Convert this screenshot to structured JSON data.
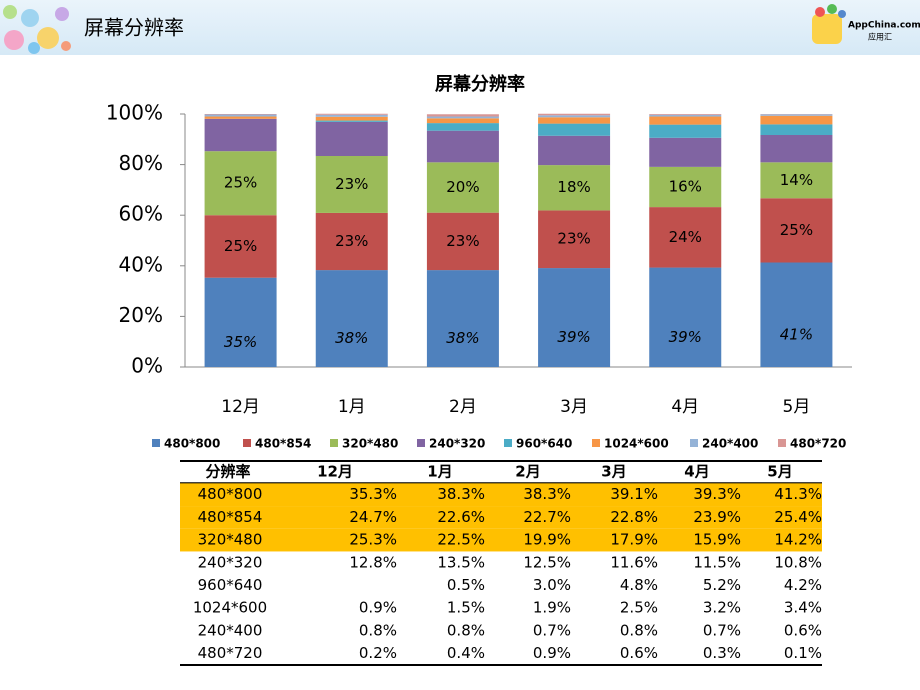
{
  "header": {
    "title": "屏幕分辨率",
    "logo": "AppChina.com",
    "logo_sub": "应用汇"
  },
  "chart_data": {
    "type": "stacked_bar",
    "title": "屏幕分辨率",
    "categories": [
      "12月",
      "1月",
      "2月",
      "3月",
      "4月",
      "5月"
    ],
    "ylim": [
      0,
      100
    ],
    "yticks": [
      {
        "value": 0,
        "label": "0%"
      },
      {
        "value": 20,
        "label": "20%"
      },
      {
        "value": 40,
        "label": "40%"
      },
      {
        "value": 60,
        "label": "60%"
      },
      {
        "value": 80,
        "label": "80%"
      },
      {
        "value": 100,
        "label": "100%"
      }
    ],
    "legend": "bottom",
    "series": [
      {
        "name": "480*800",
        "color": "#4f81bd",
        "values": [
          35.3,
          38.3,
          38.3,
          39.1,
          39.3,
          41.3
        ],
        "value_labels": [
          "35%",
          "38%",
          "38%",
          "39%",
          "39%",
          "41%"
        ]
      },
      {
        "name": "480*854",
        "color": "#c0504d",
        "values": [
          24.7,
          22.6,
          22.7,
          22.8,
          23.9,
          25.4
        ],
        "value_labels": [
          "25%",
          "23%",
          "23%",
          "23%",
          "24%",
          "25%"
        ]
      },
      {
        "name": "320*480",
        "color": "#9bbb59",
        "values": [
          25.3,
          22.5,
          19.9,
          17.9,
          15.9,
          14.2
        ],
        "value_labels": [
          "25%",
          "23%",
          "20%",
          "18%",
          "16%",
          "14%"
        ]
      },
      {
        "name": "240*320",
        "color": "#8064a2",
        "values": [
          12.8,
          13.5,
          12.5,
          11.6,
          11.5,
          10.8
        ]
      },
      {
        "name": "960*640",
        "color": "#4bacc6",
        "values": [
          null,
          0.5,
          3.0,
          4.8,
          5.2,
          4.2
        ]
      },
      {
        "name": "1024*600",
        "color": "#f79646",
        "values": [
          0.9,
          1.5,
          1.9,
          2.5,
          3.2,
          3.4
        ]
      },
      {
        "name": "240*400",
        "color": "#95b3d7",
        "values": [
          0.8,
          0.8,
          0.7,
          0.8,
          0.7,
          0.6
        ]
      },
      {
        "name": "480*720",
        "color": "#d99694",
        "values": [
          0.2,
          0.4,
          0.9,
          0.6,
          0.3,
          0.1
        ]
      }
    ]
  },
  "table": {
    "header": [
      "分辨率",
      "12月",
      "1月",
      "2月",
      "3月",
      "4月",
      "5月"
    ],
    "highlight_color": "#ffc000",
    "rows": [
      [
        "480*800",
        "35.3%",
        "38.3%",
        "38.3%",
        "39.1%",
        "39.3%",
        "41.3%"
      ],
      [
        "480*854",
        "24.7%",
        "22.6%",
        "22.7%",
        "22.8%",
        "23.9%",
        "25.4%"
      ],
      [
        "320*480",
        "25.3%",
        "22.5%",
        "19.9%",
        "17.9%",
        "15.9%",
        "14.2%"
      ],
      [
        "240*320",
        "12.8%",
        "13.5%",
        "12.5%",
        "11.6%",
        "11.5%",
        "10.8%"
      ],
      [
        "960*640",
        "",
        "0.5%",
        "3.0%",
        "4.8%",
        "5.2%",
        "4.2%"
      ],
      [
        "1024*600",
        "0.9%",
        "1.5%",
        "1.9%",
        "2.5%",
        "3.2%",
        "3.4%"
      ],
      [
        "240*400",
        "0.8%",
        "0.8%",
        "0.7%",
        "0.8%",
        "0.7%",
        "0.6%"
      ],
      [
        "480*720",
        "0.2%",
        "0.4%",
        "0.9%",
        "0.6%",
        "0.3%",
        "0.1%"
      ]
    ]
  }
}
